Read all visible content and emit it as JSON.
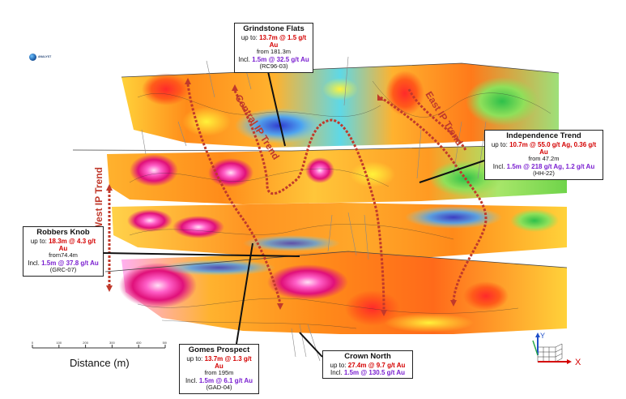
{
  "logo": {
    "text": "ANALYST",
    "icon": "company-logo-icon"
  },
  "trends": {
    "central": "Central IP Trend",
    "east": "East IP Trend",
    "west": "West IP Trend"
  },
  "callouts": {
    "grindstone": {
      "title": "Grindstone Flats",
      "prefix": "up to: ",
      "value": "13.7m @ 1.5 g/t Au",
      "from": "from 181.3m",
      "incl_prefix": "Incl. ",
      "incl": "1.5m @ 32.5 g/t Au",
      "hole": "(RC96-03)"
    },
    "independence": {
      "title": "Independence Trend",
      "prefix": "up to: ",
      "value": "10.7m @ 55.0 g/t Ag, 0.36 g/t Au",
      "from": "from 47.2m",
      "incl_prefix": "Incl. ",
      "incl": "1.5m @ 218 g/t Ag, 1.2 g/t Au",
      "hole": "(HH-22)"
    },
    "robbers": {
      "title": "Robbers Knob",
      "prefix": "up to: ",
      "value": "18.3m @ 4.3 g/t Au",
      "from": "from74.4m",
      "incl_prefix": "Incl. ",
      "incl": "1.5m @ 37.8 g/t Au",
      "hole": "(GRC-07)"
    },
    "gomes": {
      "title": "Gomes Prospect",
      "prefix": "up to: ",
      "value": "13.7m @ 1.3 g/t Au",
      "from": "from 195m",
      "incl_prefix": "Incl. ",
      "incl": "1.5m @ 6.1 g/t Au",
      "hole": "(GAD-04)"
    },
    "crown": {
      "title": "Crown North",
      "prefix": "up to: ",
      "value": "27.4m @ 9.7 g/t Au",
      "incl_prefix": "Incl. ",
      "incl": "1.5m @ 130.5 g/t Au"
    }
  },
  "scale": {
    "title": "Distance (m)",
    "ticks": [
      "0",
      "100",
      "200",
      "300",
      "400",
      "500"
    ]
  },
  "axes": {
    "x": "X",
    "y": "Y"
  },
  "colors": {
    "high": "#ff2fa0",
    "medium": "#ff6a1a",
    "low": "#2a4dff",
    "trend": "#c0392b",
    "incl": "#7a1fd0",
    "value": "#d40000"
  }
}
